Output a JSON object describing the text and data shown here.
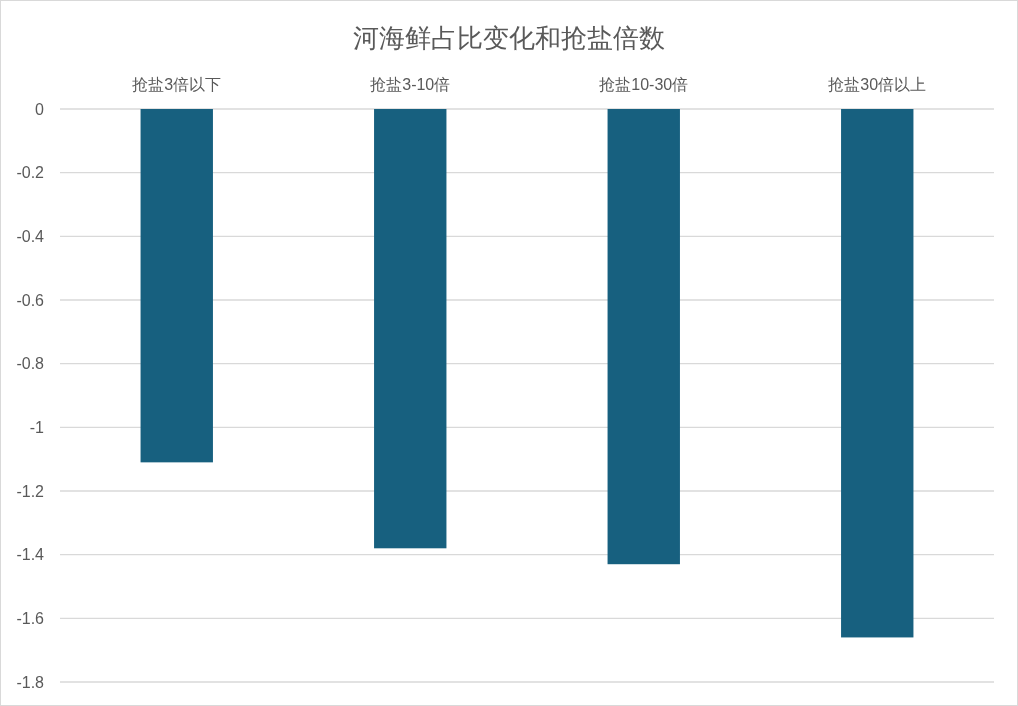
{
  "chart_data": {
    "type": "bar",
    "title": "河海鲜占比变化和抢盐倍数",
    "categories": [
      "抢盐3倍以下",
      "抢盐3-10倍",
      "抢盐10-30倍",
      "抢盐30倍以上"
    ],
    "values": [
      -1.11,
      -1.38,
      -1.43,
      -1.66
    ],
    "color": "#17607f",
    "ylim": [
      -1.8,
      0
    ],
    "yticks": [
      0,
      -0.2,
      -0.4,
      -0.6,
      -0.8,
      -1,
      -1.2,
      -1.4,
      -1.6,
      -1.8
    ],
    "grid": "y"
  }
}
